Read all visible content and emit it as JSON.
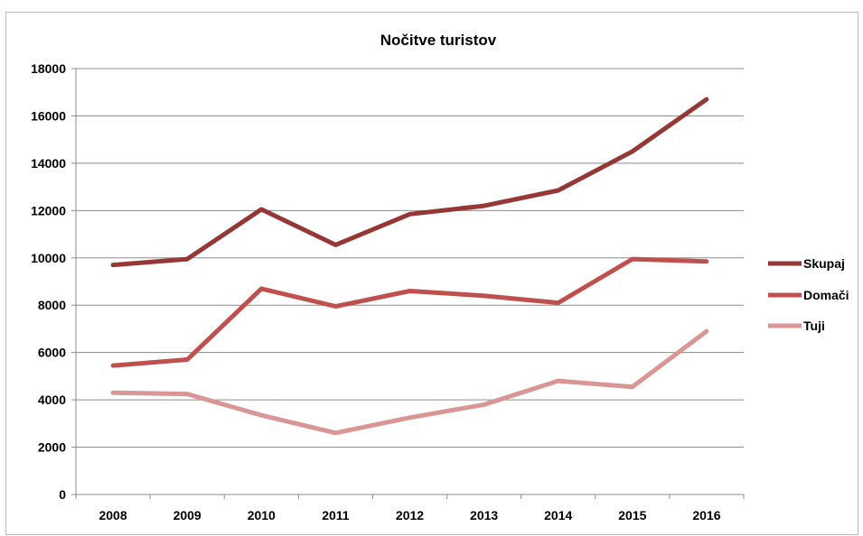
{
  "chart_data": {
    "type": "line",
    "title": "Nočitve turistov",
    "xlabel": "",
    "ylabel": "",
    "categories": [
      "2008",
      "2009",
      "2010",
      "2011",
      "2012",
      "2013",
      "2014",
      "2015",
      "2016"
    ],
    "ylim": [
      0,
      18000
    ],
    "yticks": [
      0,
      2000,
      4000,
      6000,
      8000,
      10000,
      12000,
      14000,
      16000,
      18000
    ],
    "grid": true,
    "legend_position": "right",
    "series": [
      {
        "name": "Skupaj",
        "color": "#953735",
        "values": [
          9700,
          9950,
          12050,
          10550,
          11850,
          12200,
          12850,
          14500,
          16700
        ]
      },
      {
        "name": "Domači",
        "color": "#c0504d",
        "values": [
          5450,
          5700,
          8700,
          7950,
          8600,
          8400,
          8100,
          9950,
          9850
        ]
      },
      {
        "name": "Tuji",
        "color": "#d99694",
        "values": [
          4300,
          4250,
          3350,
          2600,
          3250,
          3800,
          4800,
          4550,
          6900
        ]
      }
    ]
  }
}
